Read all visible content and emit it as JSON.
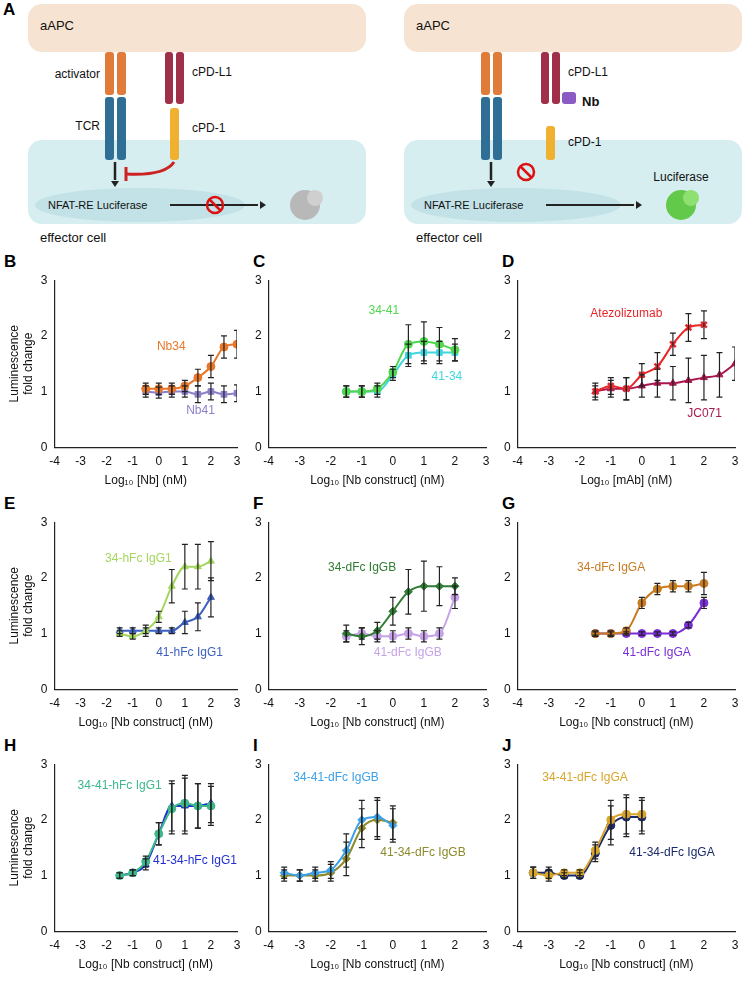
{
  "diagram": {
    "panel": "A",
    "left": {
      "top_cell": "aAPC",
      "activator": "activator",
      "tcr": "TCR",
      "ligand": "cPD-L1",
      "receptor": "cPD-1",
      "reporter": "NFAT-RE Luciferase",
      "bottom_cell": "effector cell"
    },
    "right": {
      "top_cell": "aAPC",
      "ligand": "cPD-L1",
      "nanobody": "Nb",
      "receptor": "cPD-1",
      "reporter": "NFAT-RE Luciferase",
      "bottom_cell": "effector cell",
      "product": "Luciferase"
    }
  },
  "chart_data": [
    {
      "panel": "B",
      "type": "line",
      "x_label": "Log₁₀ [Nb] (nM)",
      "y_label": "Luminescence fold change",
      "xlim": [
        -4,
        3
      ],
      "xticks": [
        -4,
        -3,
        -2,
        -1,
        0,
        1,
        2,
        3
      ],
      "ylim": [
        0,
        3
      ],
      "yticks": [
        0,
        1,
        2,
        3
      ],
      "grid": false,
      "series": [
        {
          "name": "Nb34",
          "color": "#e8772a",
          "marker": "circle",
          "x": [
            -0.5,
            0,
            0.5,
            1,
            1.5,
            2,
            2.5,
            3
          ],
          "values": [
            1.05,
            1.05,
            1.05,
            1.1,
            1.25,
            1.45,
            1.8,
            1.85
          ],
          "errors": [
            0.1,
            0.1,
            0.1,
            0.1,
            0.15,
            0.2,
            0.2,
            0.25
          ]
        },
        {
          "name": "Nb41",
          "color": "#8c7fc9",
          "marker": "square",
          "x": [
            -0.5,
            0,
            0.5,
            1,
            1.5,
            2,
            2.5,
            3
          ],
          "values": [
            1.0,
            0.98,
            1.0,
            1.0,
            0.95,
            1.0,
            0.95,
            0.97
          ],
          "errors": [
            0.1,
            0.1,
            0.1,
            0.1,
            0.15,
            0.15,
            0.15,
            0.15
          ]
        }
      ]
    },
    {
      "panel": "C",
      "type": "line",
      "x_label": "Log₁₀ [Nb construct] (nM)",
      "xlim": [
        -4,
        3
      ],
      "xticks": [
        -4,
        -3,
        -2,
        -1,
        0,
        1,
        2,
        3
      ],
      "ylim": [
        0,
        3
      ],
      "yticks": [
        0,
        1,
        2,
        3
      ],
      "grid": false,
      "series": [
        {
          "name": "34-41",
          "color": "#4fd84f",
          "marker": "circle",
          "x": [
            -1.5,
            -1,
            -0.5,
            0,
            0.5,
            1,
            1.5,
            2
          ],
          "values": [
            1.0,
            1.0,
            1.05,
            1.35,
            1.85,
            1.9,
            1.85,
            1.75
          ],
          "errors": [
            0.1,
            0.1,
            0.1,
            0.1,
            0.35,
            0.35,
            0.3,
            0.2
          ]
        },
        {
          "name": "41-34",
          "color": "#3fd6e0",
          "marker": "square",
          "x": [
            -1.5,
            -1,
            -0.5,
            0,
            0.5,
            1,
            1.5,
            2
          ],
          "values": [
            1.0,
            1.0,
            1.0,
            1.3,
            1.65,
            1.7,
            1.7,
            1.7
          ],
          "errors": [
            0.1,
            0.1,
            0.1,
            0.1,
            0.2,
            0.2,
            0.2,
            0.15
          ]
        }
      ]
    },
    {
      "panel": "D",
      "type": "line",
      "x_label": "Log₁₀ [mAb] (nM)",
      "xlim": [
        -4,
        3
      ],
      "xticks": [
        -4,
        -3,
        -2,
        -1,
        0,
        1,
        2,
        3
      ],
      "ylim": [
        0,
        3
      ],
      "yticks": [
        0,
        1,
        2,
        3
      ],
      "grid": false,
      "series": [
        {
          "name": "Atezolizumab",
          "color": "#e8262a",
          "marker": "x",
          "x": [
            -1.5,
            -1,
            -0.5,
            0,
            0.5,
            1,
            1.5,
            2
          ],
          "values": [
            1.0,
            1.1,
            1.05,
            1.3,
            1.45,
            1.85,
            2.15,
            2.2
          ],
          "errors": [
            0.15,
            0.15,
            0.2,
            0.2,
            0.25,
            0.2,
            0.25,
            0.25
          ]
        },
        {
          "name": "JC071",
          "color": "#a8174e",
          "marker": "triangle",
          "x": [
            -1.5,
            -1,
            -0.5,
            0,
            0.5,
            1,
            1.5,
            2,
            2.5,
            3
          ],
          "values": [
            1.0,
            1.05,
            1.05,
            1.1,
            1.15,
            1.15,
            1.2,
            1.25,
            1.3,
            1.5
          ],
          "errors": [
            0.1,
            0.15,
            0.2,
            0.2,
            0.25,
            0.3,
            0.4,
            0.4,
            0.4,
            0.3
          ]
        }
      ]
    },
    {
      "panel": "E",
      "type": "line",
      "x_label": "Log₁₀ [Nb construct] (nM)",
      "y_label": "Luminescence fold change",
      "xlim": [
        -4,
        3
      ],
      "xticks": [
        -4,
        -3,
        -2,
        -1,
        0,
        1,
        2,
        3
      ],
      "ylim": [
        0,
        3
      ],
      "yticks": [
        0,
        1,
        2,
        3
      ],
      "grid": false,
      "series": [
        {
          "name": "34-hFc IgG1",
          "color": "#a4d65e",
          "marker": "triangle",
          "x": [
            -1.5,
            -1,
            -0.5,
            0,
            0.5,
            1,
            1.5,
            2
          ],
          "values": [
            1.0,
            0.95,
            1.05,
            1.3,
            1.85,
            2.2,
            2.2,
            2.3
          ],
          "errors": [
            0.05,
            0.05,
            0.1,
            0.1,
            0.3,
            0.4,
            0.4,
            0.35
          ]
        },
        {
          "name": "41-hFc IgG1",
          "color": "#3b5fc0",
          "marker": "triangle",
          "x": [
            -1.5,
            -1,
            -0.5,
            0,
            0.5,
            1,
            1.5,
            2
          ],
          "values": [
            1.05,
            1.05,
            1.05,
            1.05,
            1.05,
            1.2,
            1.3,
            1.65
          ],
          "errors": [
            0.05,
            0.05,
            0.05,
            0.05,
            0.05,
            0.2,
            0.25,
            0.35
          ]
        }
      ]
    },
    {
      "panel": "F",
      "type": "line",
      "x_label": "Log₁₀ [Nb construct] (nM)",
      "xlim": [
        -4,
        3
      ],
      "xticks": [
        -4,
        -3,
        -2,
        -1,
        0,
        1,
        2,
        3
      ],
      "ylim": [
        0,
        3
      ],
      "yticks": [
        0,
        1,
        2,
        3
      ],
      "grid": false,
      "series": [
        {
          "name": "34-dFc IgGB",
          "color": "#2e7d32",
          "marker": "diamond",
          "x": [
            -1.5,
            -1,
            -0.5,
            0,
            0.5,
            1,
            1.5,
            2
          ],
          "values": [
            1.0,
            0.95,
            1.05,
            1.4,
            1.75,
            1.85,
            1.85,
            1.85
          ],
          "errors": [
            0.15,
            0.15,
            0.15,
            0.25,
            0.4,
            0.45,
            0.35,
            0.15
          ]
        },
        {
          "name": "41-dFc IgGB",
          "color": "#c6a3e8",
          "marker": "circle",
          "x": [
            -1.5,
            -1,
            -0.5,
            0,
            0.5,
            1,
            1.5,
            2
          ],
          "values": [
            0.95,
            1.0,
            0.95,
            0.95,
            1.0,
            0.95,
            1.0,
            1.65
          ],
          "errors": [
            0.1,
            0.1,
            0.1,
            0.1,
            0.1,
            0.1,
            0.1,
            0.2
          ]
        }
      ]
    },
    {
      "panel": "G",
      "type": "line",
      "x_label": "Log₁₀ [Nb construct] (nM)",
      "xlim": [
        -4,
        3
      ],
      "xticks": [
        -4,
        -3,
        -2,
        -1,
        0,
        1,
        2,
        3
      ],
      "ylim": [
        0,
        3
      ],
      "yticks": [
        0,
        1,
        2,
        3
      ],
      "grid": false,
      "series": [
        {
          "name": "34-dFc IgGA",
          "color": "#c87b22",
          "marker": "circle",
          "x": [
            -1.5,
            -1,
            -0.5,
            0,
            0.5,
            1,
            1.5,
            2
          ],
          "values": [
            1.0,
            1.0,
            1.05,
            1.55,
            1.8,
            1.85,
            1.85,
            1.9
          ],
          "errors": [
            0.05,
            0.05,
            0.05,
            0.1,
            0.1,
            0.1,
            0.1,
            0.2
          ]
        },
        {
          "name": "41-dFc IgGA",
          "color": "#7a2fd6",
          "marker": "circle",
          "x": [
            -1.5,
            -1,
            -0.5,
            0,
            0.5,
            1,
            1.5,
            2
          ],
          "values": [
            1.0,
            1.0,
            1.0,
            1.0,
            1.0,
            1.0,
            1.15,
            1.55
          ],
          "errors": [
            0.03,
            0.03,
            0.03,
            0.03,
            0.03,
            0.03,
            0.05,
            0.1
          ]
        }
      ]
    },
    {
      "panel": "H",
      "type": "line",
      "x_label": "Log₁₀ [Nb construct] (nM)",
      "y_label": "Luminescence fold change",
      "xlim": [
        -4,
        3
      ],
      "xticks": [
        -4,
        -3,
        -2,
        -1,
        0,
        1,
        2,
        3
      ],
      "ylim": [
        0,
        3
      ],
      "yticks": [
        0,
        1,
        2,
        3
      ],
      "grid": false,
      "series": [
        {
          "name": "34-41-hFc IgG1",
          "color": "#3cb88a",
          "marker": "circle",
          "x": [
            -1.5,
            -1,
            -0.5,
            0,
            0.5,
            1,
            1.5,
            2
          ],
          "values": [
            1.0,
            1.05,
            1.25,
            1.75,
            2.2,
            2.3,
            2.25,
            2.25
          ],
          "errors": [
            0.05,
            0.05,
            0.1,
            0.2,
            0.45,
            0.5,
            0.4,
            0.35
          ]
        },
        {
          "name": "41-34-hFc IgG1",
          "color": "#1f2fd0",
          "marker": "triangle",
          "x": [
            -1.5,
            -1,
            -0.5,
            0,
            0.5,
            1,
            1.5,
            2
          ],
          "values": [
            1.0,
            1.05,
            1.2,
            1.75,
            2.25,
            2.25,
            2.25,
            2.3
          ],
          "errors": [
            0.05,
            0.05,
            0.1,
            0.2,
            0.45,
            0.5,
            0.4,
            0.35
          ]
        }
      ]
    },
    {
      "panel": "I",
      "type": "line",
      "x_label": "Log₁₀ [Nb construct] (nM)",
      "xlim": [
        -4,
        3
      ],
      "xticks": [
        -4,
        -3,
        -2,
        -1,
        0,
        1,
        2,
        3
      ],
      "ylim": [
        0,
        3
      ],
      "yticks": [
        0,
        1,
        2,
        3
      ],
      "grid": false,
      "series": [
        {
          "name": "34-41-dFc IgGB",
          "color": "#3aa0e8",
          "marker": "diamond",
          "x": [
            -3.5,
            -3,
            -2.5,
            -2,
            -1.5,
            -1,
            -0.5,
            0
          ],
          "values": [
            1.05,
            1.0,
            1.05,
            1.1,
            1.45,
            2.0,
            2.05,
            1.9
          ],
          "errors": [
            0.1,
            0.1,
            0.1,
            0.15,
            0.3,
            0.35,
            0.35,
            0.3
          ]
        },
        {
          "name": "41-34-dFc IgGB",
          "color": "#8c8a2a",
          "marker": "diamond",
          "x": [
            -3.5,
            -3,
            -2.5,
            -2,
            -1.5,
            -1,
            -0.5,
            0
          ],
          "values": [
            1.0,
            1.0,
            1.0,
            1.05,
            1.3,
            1.85,
            2.0,
            1.95
          ],
          "errors": [
            0.1,
            0.1,
            0.1,
            0.15,
            0.3,
            0.35,
            0.35,
            0.3
          ]
        }
      ]
    },
    {
      "panel": "J",
      "type": "line",
      "x_label": "Log₁₀ [Nb construct] (nM)",
      "xlim": [
        -4,
        3
      ],
      "xticks": [
        -4,
        -3,
        -2,
        -1,
        0,
        1,
        2,
        3
      ],
      "ylim": [
        0,
        3
      ],
      "yticks": [
        0,
        1,
        2,
        3
      ],
      "grid": false,
      "series": [
        {
          "name": "34-41-dFc IgGA",
          "color": "#d8a52a",
          "marker": "circle",
          "x": [
            -3.5,
            -3,
            -2.5,
            -2,
            -1.5,
            -1,
            -0.5,
            0
          ],
          "values": [
            1.05,
            1.0,
            1.05,
            1.05,
            1.45,
            2.0,
            2.1,
            2.1
          ],
          "errors": [
            0.1,
            0.1,
            0.05,
            0.05,
            0.15,
            0.35,
            0.35,
            0.3
          ]
        },
        {
          "name": "41-34-dFc IgGA",
          "color": "#1a2a6a",
          "marker": "circle",
          "x": [
            -3.5,
            -3,
            -2.5,
            -2,
            -1.5,
            -1,
            -0.5,
            0
          ],
          "values": [
            1.05,
            1.05,
            1.0,
            1.0,
            1.4,
            1.9,
            2.05,
            2.05
          ],
          "errors": [
            0.1,
            0.1,
            0.05,
            0.05,
            0.15,
            0.35,
            0.35,
            0.3
          ]
        }
      ]
    }
  ]
}
